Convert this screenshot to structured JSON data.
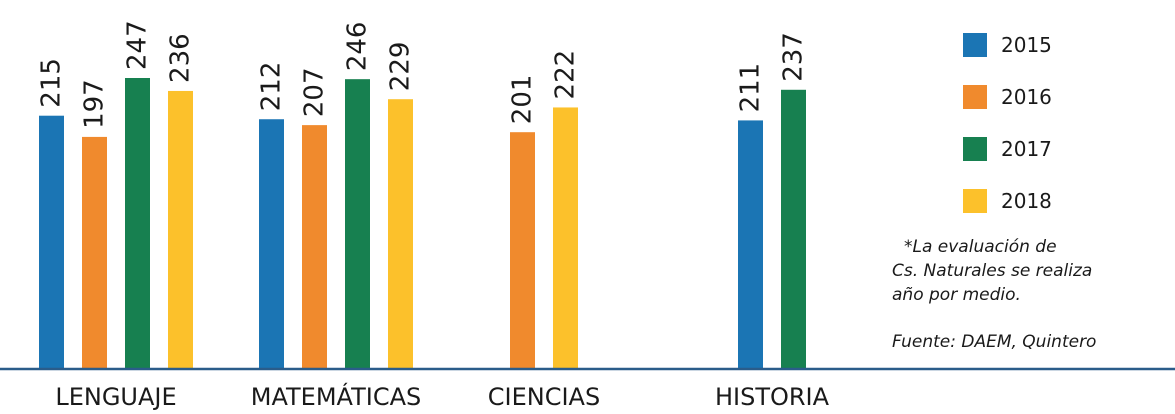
{
  "chart_data": {
    "type": "bar",
    "categories": [
      "LENGUAJE",
      "MATEMÁTICAS",
      "CIENCIAS",
      "HISTORIA"
    ],
    "series": [
      {
        "name": "2015",
        "color": "#1b75b4",
        "values": [
          215,
          212,
          null,
          211
        ]
      },
      {
        "name": "2016",
        "color": "#f08a2d",
        "values": [
          197,
          207,
          201,
          null
        ]
      },
      {
        "name": "2017",
        "color": "#178050",
        "values": [
          247,
          246,
          null,
          237
        ]
      },
      {
        "name": "2018",
        "color": "#fcc12b",
        "values": [
          236,
          229,
          222,
          null
        ]
      }
    ],
    "ylim": [
      0,
      247
    ],
    "grid": false,
    "legend_position": "right",
    "axis_color": "#2a5c8a"
  },
  "notes": {
    "footnote_lines": [
      "*La evaluación de",
      "Cs. Naturales se realiza",
      "año por medio."
    ],
    "source": "Fuente: DAEM, Quintero"
  }
}
